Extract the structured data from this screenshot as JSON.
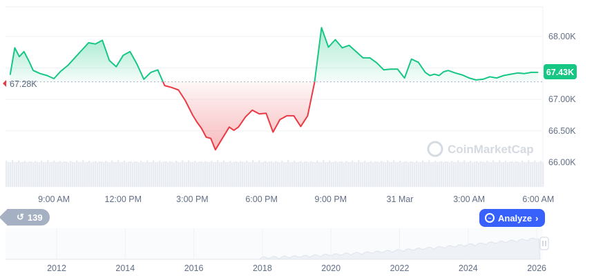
{
  "chart_data": {
    "type": "area",
    "baseline": 67280,
    "baseline_label": "67.28K",
    "current_label": "67.43K",
    "y_ticks": [
      "68.00K",
      "67.50K",
      "67.00K",
      "66.50K",
      "66.00K"
    ],
    "y_tick_values": [
      68000,
      67500,
      67000,
      66500,
      66000
    ],
    "ylim": [
      65610,
      68470
    ],
    "x_ticks": [
      "9:00 AM",
      "12:00 PM",
      "3:00 PM",
      "6:00 PM",
      "9:00 PM",
      "31 Mar",
      "3:00 AM",
      "6:00 AM"
    ],
    "x_tick_hours": [
      9,
      12,
      15,
      18,
      21,
      24,
      27,
      30
    ],
    "xlim": [
      6.9,
      30.2
    ],
    "series": [
      {
        "x": [
          7.1,
          7.3,
          7.5,
          7.7,
          7.9,
          8.1,
          8.4,
          8.7,
          9.0,
          9.3,
          9.6,
          9.9,
          10.2,
          10.5,
          10.8,
          11.1,
          11.4,
          11.7,
          12.0,
          12.3,
          12.6,
          12.9,
          13.2,
          13.5,
          13.8,
          14.1,
          14.4,
          14.7,
          15.0,
          15.2,
          15.4,
          15.6,
          15.8,
          16.0,
          16.2,
          16.4,
          16.6,
          16.8,
          17.0,
          17.3,
          17.6,
          17.9,
          18.2,
          18.5,
          18.8,
          19.1,
          19.4,
          19.7,
          20.0,
          20.3,
          20.6,
          20.9,
          21.2,
          21.5,
          21.8,
          22.1,
          22.4,
          22.7,
          23.0,
          23.3,
          23.6,
          23.9,
          24.2,
          24.5,
          24.8,
          25.1,
          25.3,
          25.5,
          25.7,
          25.9,
          26.1,
          26.4,
          26.7,
          27.0,
          27.3,
          27.6,
          27.9,
          28.2,
          28.5,
          28.8,
          29.1,
          29.4,
          29.7,
          30.0
        ],
        "y": [
          67390,
          67820,
          67680,
          67760,
          67620,
          67460,
          67410,
          67380,
          67330,
          67450,
          67540,
          67660,
          67780,
          67900,
          67880,
          67940,
          67620,
          67520,
          67700,
          67760,
          67560,
          67320,
          67430,
          67470,
          67220,
          67190,
          67150,
          66980,
          66760,
          66640,
          66540,
          66400,
          66380,
          66200,
          66320,
          66440,
          66560,
          66510,
          66560,
          66720,
          66830,
          66770,
          66780,
          66480,
          66680,
          66740,
          66740,
          66570,
          66740,
          67270,
          68140,
          67830,
          67950,
          67820,
          67860,
          67760,
          67660,
          67660,
          67580,
          67470,
          67480,
          67480,
          67340,
          67640,
          67590,
          67430,
          67380,
          67400,
          67380,
          67440,
          67460,
          67420,
          67390,
          67340,
          67310,
          67320,
          67360,
          67340,
          67380,
          67400,
          67420,
          67410,
          67430,
          67430
        ]
      }
    ],
    "volume_level": 0.33,
    "history_ticks": [
      "2012",
      "2014",
      "2016",
      "2018",
      "2020",
      "2022",
      "2024",
      "2026"
    ]
  },
  "ui": {
    "history_button_count": "139",
    "analyze_label": "Analyze",
    "watermark": "CoinMarketCap"
  },
  "colors": {
    "up": "#16c784",
    "down": "#ea3943",
    "accent": "#3861fb"
  }
}
